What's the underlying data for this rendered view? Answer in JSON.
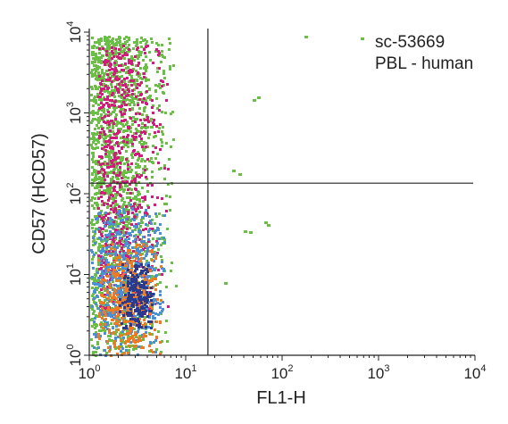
{
  "chart_data": {
    "type": "scatter",
    "subtype": "flow-cytometry-density-dot-plot",
    "title": "",
    "xlabel": "FL1-H",
    "ylabel": "CD57 (HCD57)",
    "x_scale": "log",
    "y_scale": "log",
    "xlim": [
      1,
      10000
    ],
    "ylim": [
      1,
      10000
    ],
    "x_ticks": [
      {
        "value": 1,
        "base": "10",
        "exp": "0"
      },
      {
        "value": 10,
        "base": "10",
        "exp": "1"
      },
      {
        "value": 100,
        "base": "10",
        "exp": "2"
      },
      {
        "value": 1000,
        "base": "10",
        "exp": "3"
      },
      {
        "value": 10000,
        "base": "10",
        "exp": "4"
      }
    ],
    "y_ticks": [
      {
        "value": 1,
        "base": "10",
        "exp": "0"
      },
      {
        "value": 10,
        "base": "10",
        "exp": "1"
      },
      {
        "value": 100,
        "base": "10",
        "exp": "2"
      },
      {
        "value": 1000,
        "base": "10",
        "exp": "3"
      },
      {
        "value": 10000,
        "base": "10",
        "exp": "4"
      }
    ],
    "grid": false,
    "quadrant_gates": {
      "x": 17,
      "y": 135
    },
    "annotations": [
      "sc-53669",
      "PBL - human"
    ],
    "density_colors": [
      "#6abf45",
      "#d6197e",
      "#4a90d9",
      "#f07a22",
      "#2b3a8c"
    ],
    "populations": [
      {
        "density": "low",
        "color": "#6abf45",
        "x_range": [
          1,
          8
        ],
        "y_range": [
          1,
          9000
        ]
      },
      {
        "density": "medium",
        "color": "#d6197e",
        "x_range": [
          1.2,
          7
        ],
        "y_range": [
          3,
          7000
        ]
      },
      {
        "density": "high",
        "color": "#4a90d9",
        "x_range": [
          1,
          6
        ],
        "y_range": [
          1,
          80
        ]
      },
      {
        "density": "very-high",
        "color": "#f07a22",
        "x_range": [
          1.2,
          5.5
        ],
        "y_range": [
          1,
          25
        ]
      },
      {
        "density": "peak",
        "color": "#2b3a8c",
        "x_range": [
          2,
          4.5
        ],
        "y_range": [
          2,
          15
        ]
      }
    ],
    "outlier_points": [
      {
        "x": 50,
        "y": 1500,
        "color": "#6abf45"
      },
      {
        "x": 55,
        "y": 1600,
        "color": "#6abf45"
      },
      {
        "x": 30,
        "y": 200,
        "color": "#6abf45"
      },
      {
        "x": 35,
        "y": 180,
        "color": "#6abf45"
      },
      {
        "x": 65,
        "y": 45,
        "color": "#6abf45"
      },
      {
        "x": 70,
        "y": 42,
        "color": "#6abf45"
      },
      {
        "x": 40,
        "y": 35,
        "color": "#6abf45"
      },
      {
        "x": 45,
        "y": 34,
        "color": "#6abf45"
      },
      {
        "x": 25,
        "y": 8,
        "color": "#6abf45"
      },
      {
        "x": 170,
        "y": 9000,
        "color": "#6abf45"
      },
      {
        "x": 650,
        "y": 8500,
        "color": "#6abf45"
      }
    ]
  }
}
